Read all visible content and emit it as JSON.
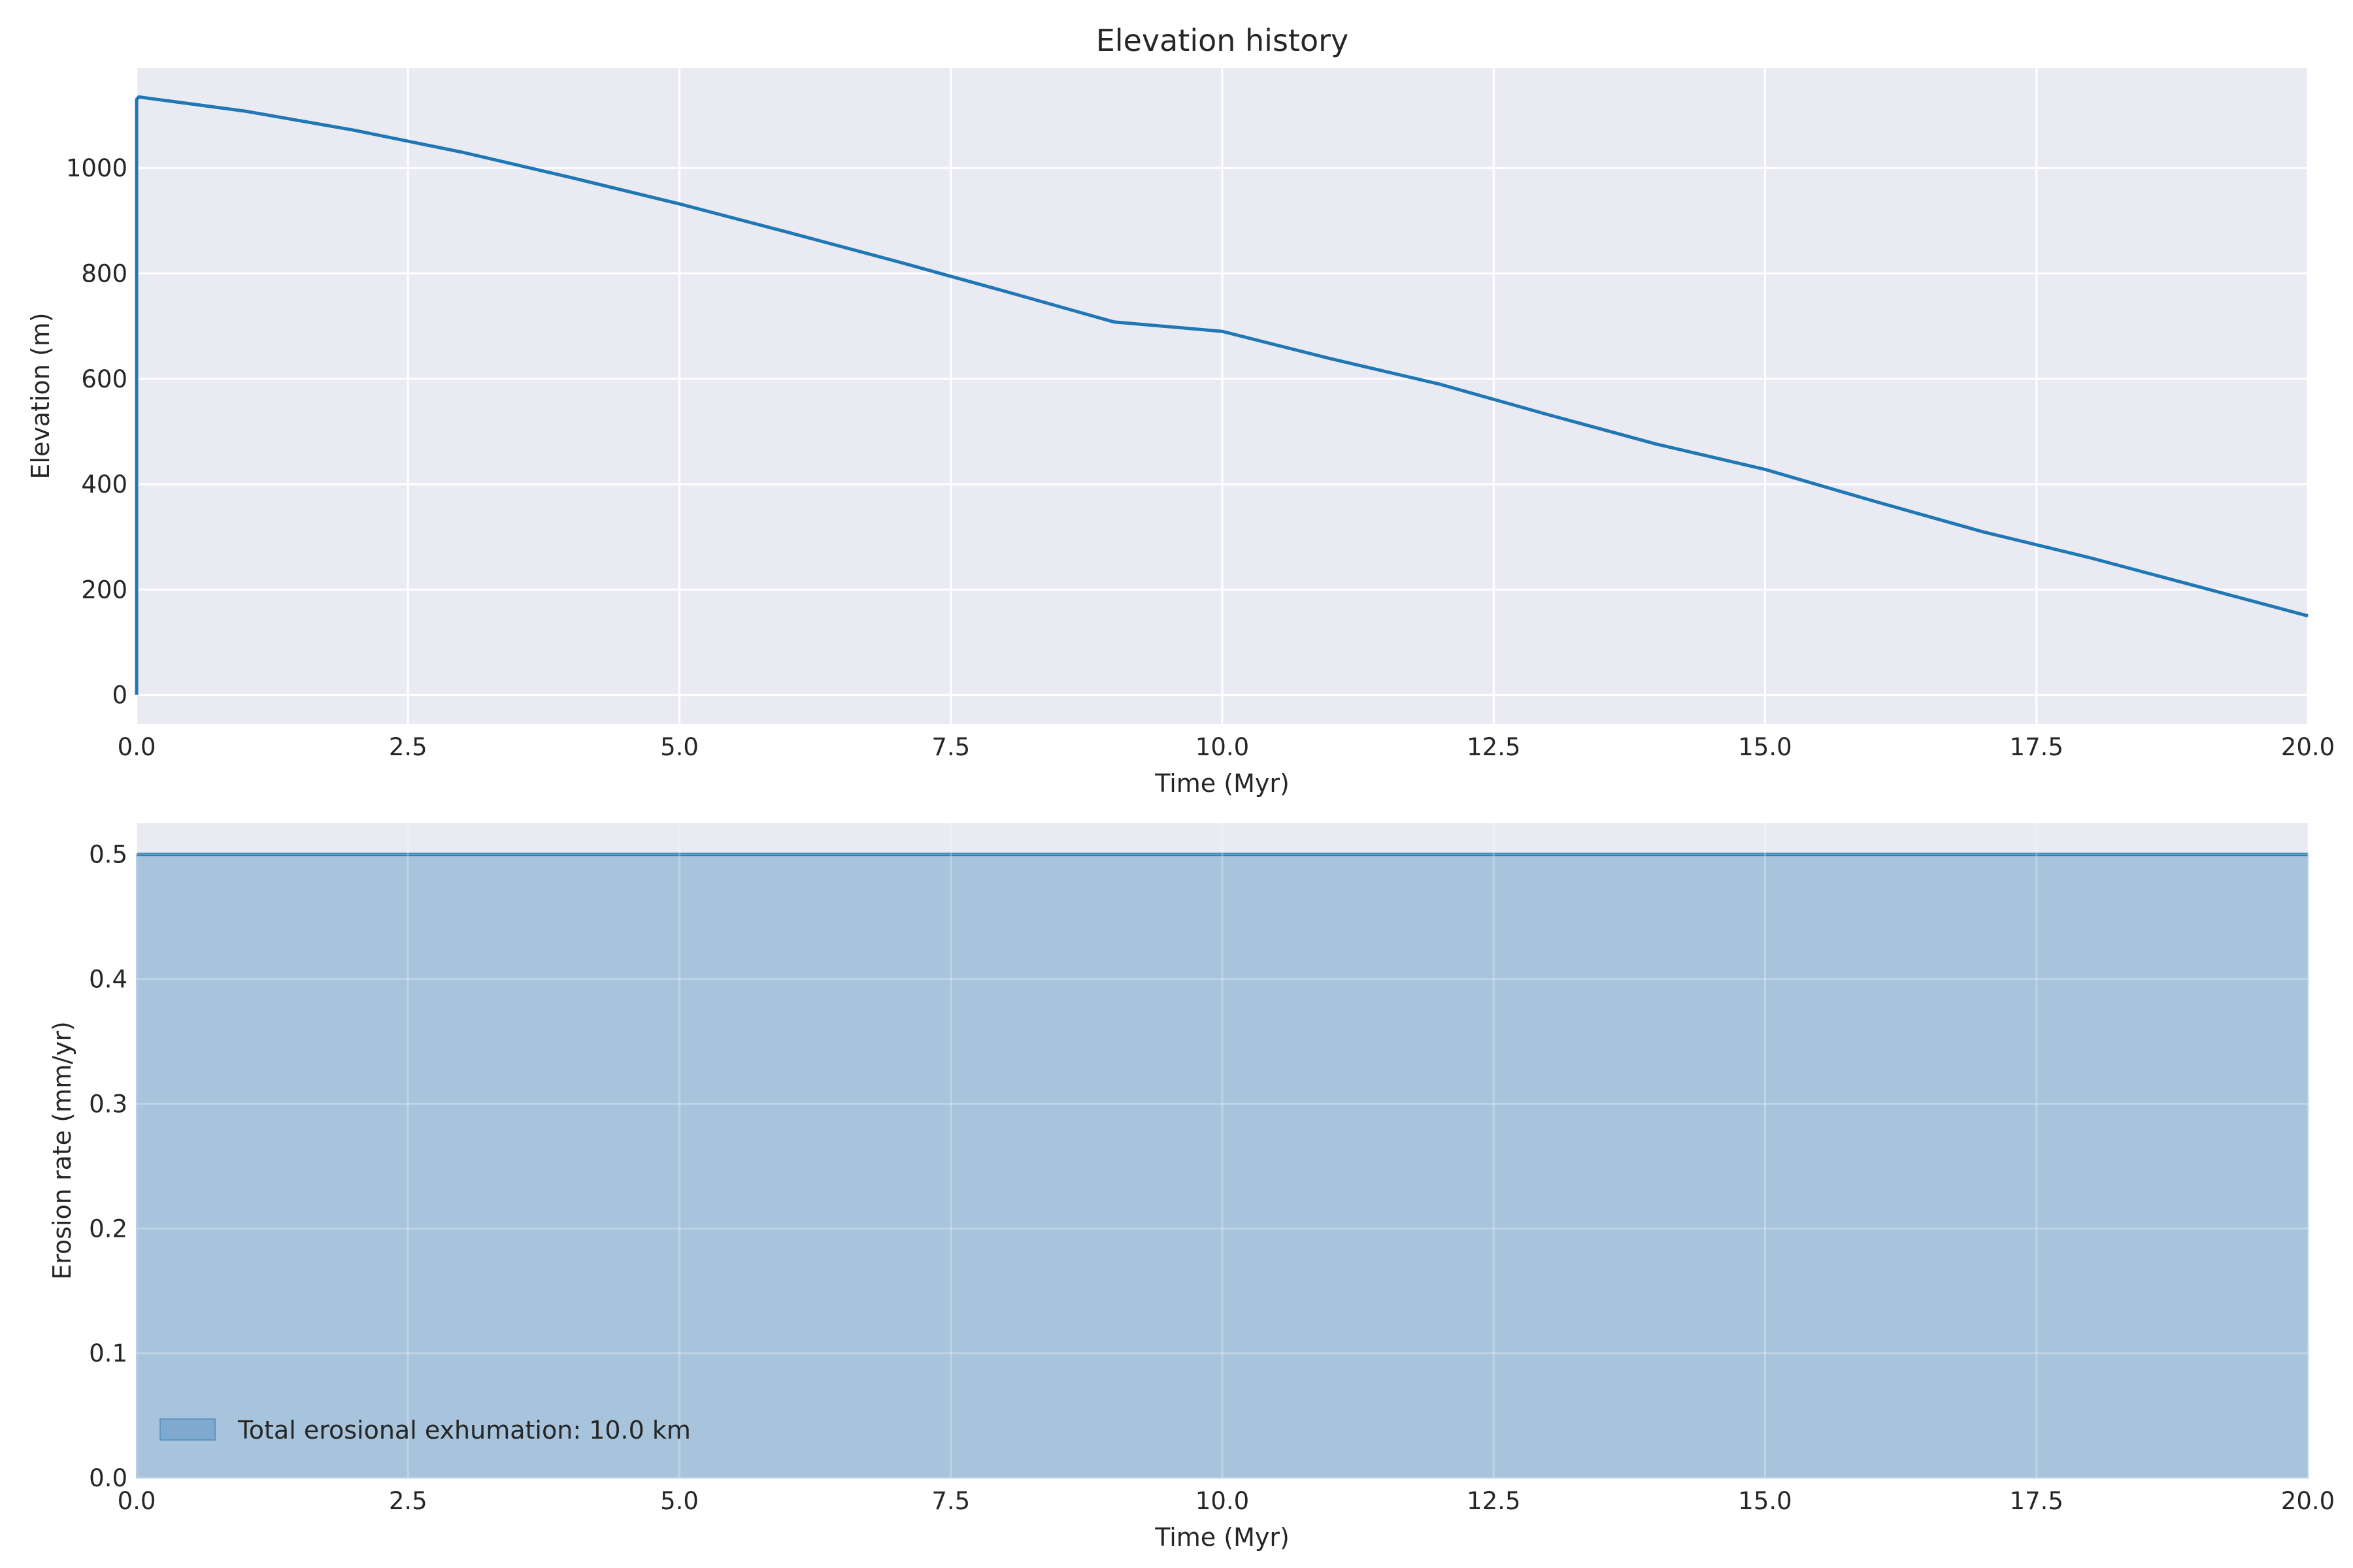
{
  "figure": {
    "background": "#ffffff",
    "axes_facecolor": "#eaeaf2",
    "grid_color": "#ffffff",
    "line_color": "#1f77b4",
    "fill_color": "#a8c4dc",
    "text_color": "#262626"
  },
  "chart_data": [
    {
      "type": "line",
      "title": "Elevation history",
      "xlabel": "Time (Myr)",
      "ylabel": "Elevation (m)",
      "xlim": [
        0,
        20
      ],
      "ylim": [
        -55,
        1190
      ],
      "xticks": [
        0,
        2.5,
        5,
        7.5,
        10,
        12.5,
        15,
        17.5,
        20
      ],
      "xtick_labels": [
        "0.0",
        "2.5",
        "5.0",
        "7.5",
        "10.0",
        "12.5",
        "15.0",
        "17.5",
        "20.0"
      ],
      "yticks": [
        0,
        200,
        400,
        600,
        800,
        1000
      ],
      "ytick_labels": [
        "0",
        "200",
        "400",
        "600",
        "800",
        "1000"
      ],
      "grid": true,
      "series": [
        {
          "x": [
            0,
            0,
            0.02,
            1,
            2,
            3,
            4,
            5,
            6,
            7,
            8,
            9,
            10,
            11,
            12,
            13,
            14,
            15,
            16,
            17,
            18,
            19,
            20
          ],
          "y": [
            0,
            1130,
            1135,
            1108,
            1072,
            1030,
            982,
            932,
            878,
            823,
            766,
            708,
            690,
            638,
            590,
            532,
            476,
            428,
            368,
            310,
            260,
            205,
            150
          ]
        }
      ]
    },
    {
      "type": "area",
      "title": "",
      "xlabel": "Time (Myr)",
      "ylabel": "Erosion rate (mm/yr)",
      "xlim": [
        0,
        20
      ],
      "ylim": [
        0,
        0.525
      ],
      "xticks": [
        0,
        2.5,
        5,
        7.5,
        10,
        12.5,
        15,
        17.5,
        20
      ],
      "xtick_labels": [
        "0.0",
        "2.5",
        "5.0",
        "7.5",
        "10.0",
        "12.5",
        "15.0",
        "17.5",
        "20.0"
      ],
      "yticks": [
        0,
        0.1,
        0.2,
        0.3,
        0.4,
        0.5
      ],
      "ytick_labels": [
        "0.0",
        "0.1",
        "0.2",
        "0.3",
        "0.4",
        "0.5"
      ],
      "grid": true,
      "legend_position": "lower-left",
      "series": [
        {
          "name": "Total erosional exhumation: 10.0 km",
          "x": [
            0,
            20
          ],
          "y": [
            0.5,
            0.5
          ]
        }
      ]
    }
  ]
}
